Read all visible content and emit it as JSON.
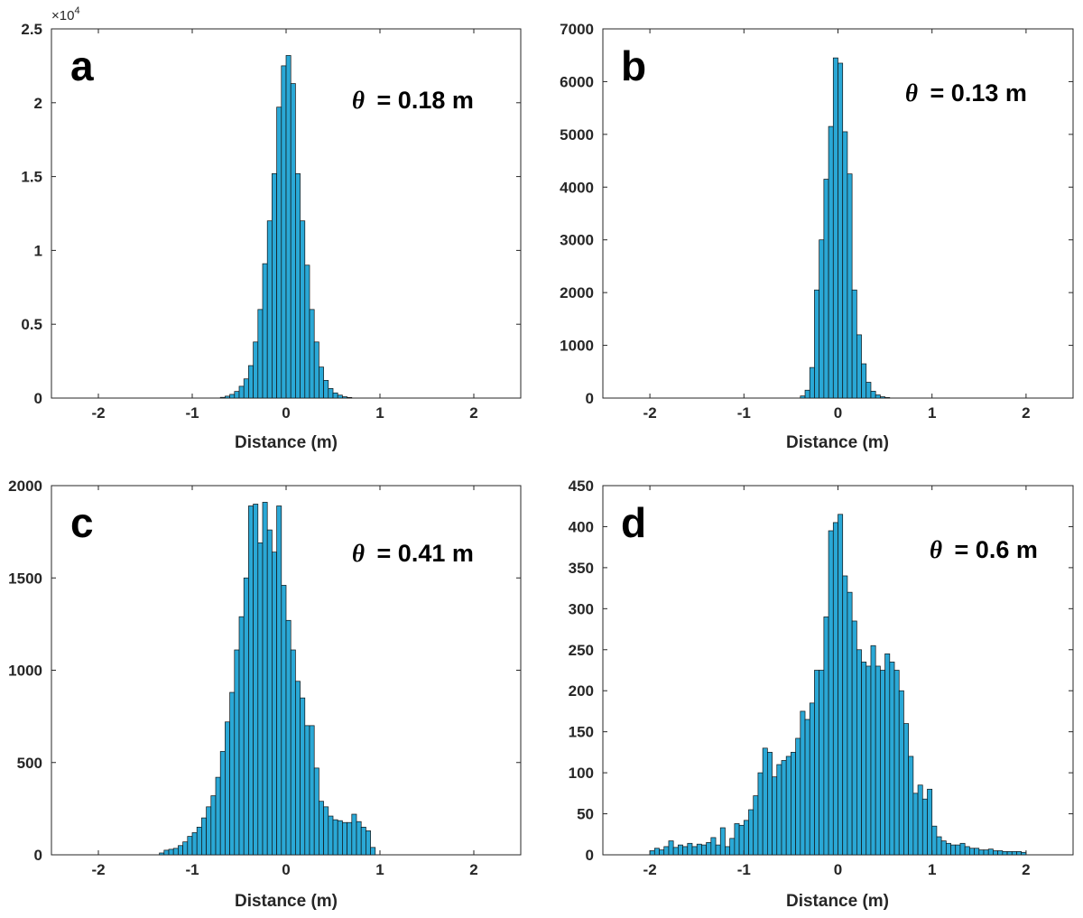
{
  "figure": {
    "bar_color": "#2aa8d6",
    "edge_color": "#111111"
  },
  "chart_data": [
    {
      "type": "bar",
      "panel_label": "a",
      "annotation": {
        "symbol": "θ",
        "text": "= 0.18 m"
      },
      "xlabel": "Distance (m)",
      "ylabel": "",
      "xlim": [
        -2.5,
        2.5
      ],
      "ylim": [
        0,
        25000
      ],
      "xticks": [
        -2,
        -1,
        0,
        1,
        2
      ],
      "xtick_labels": [
        "-2",
        "-1",
        "0",
        "1",
        "2"
      ],
      "yticks": [
        0,
        5000,
        10000,
        15000,
        20000,
        25000
      ],
      "ytick_labels": [
        "0",
        "0.5",
        "1",
        "1.5",
        "2",
        "2.5"
      ],
      "yexponent": {
        "base": "×10",
        "power": "4"
      },
      "bin_width": 0.05,
      "bin_start": -0.7,
      "values": [
        50,
        130,
        250,
        450,
        800,
        1300,
        2200,
        3800,
        6000,
        9100,
        12000,
        15200,
        19700,
        22500,
        23200,
        21300,
        15200,
        12000,
        9000,
        6000,
        3800,
        2100,
        1200,
        650,
        350,
        200,
        90,
        40
      ]
    },
    {
      "type": "bar",
      "panel_label": "b",
      "annotation": {
        "symbol": "θ",
        "text": "= 0.13 m"
      },
      "xlabel": "Distance (m)",
      "ylabel": "",
      "xlim": [
        -2.5,
        2.5
      ],
      "ylim": [
        0,
        7000
      ],
      "xticks": [
        -2,
        -1,
        0,
        1,
        2
      ],
      "xtick_labels": [
        "-2",
        "-1",
        "0",
        "1",
        "2"
      ],
      "yticks": [
        0,
        1000,
        2000,
        3000,
        4000,
        5000,
        6000,
        7000
      ],
      "ytick_labels": [
        "0",
        "1000",
        "2000",
        "3000",
        "4000",
        "5000",
        "6000",
        "7000"
      ],
      "bin_width": 0.05,
      "bin_start": -0.4,
      "values": [
        40,
        150,
        580,
        2050,
        3000,
        4150,
        5150,
        6450,
        6350,
        5050,
        4250,
        2050,
        1200,
        650,
        300,
        130,
        60,
        25,
        10
      ]
    },
    {
      "type": "bar",
      "panel_label": "c",
      "annotation": {
        "symbol": "θ",
        "text": "= 0.41 m"
      },
      "xlabel": "Distance (m)",
      "ylabel": "",
      "xlim": [
        -2.5,
        2.5
      ],
      "ylim": [
        0,
        2000
      ],
      "xticks": [
        -2,
        -1,
        0,
        1,
        2
      ],
      "xtick_labels": [
        "-2",
        "-1",
        "0",
        "1",
        "2"
      ],
      "yticks": [
        0,
        500,
        1000,
        1500,
        2000
      ],
      "ytick_labels": [
        "0",
        "500",
        "1000",
        "1500",
        "2000"
      ],
      "bin_width": 0.05,
      "bin_start": -1.35,
      "values": [
        10,
        25,
        30,
        35,
        50,
        70,
        100,
        120,
        150,
        200,
        260,
        320,
        420,
        560,
        720,
        880,
        1110,
        1290,
        1500,
        1890,
        1900,
        1690,
        1910,
        1760,
        1640,
        1890,
        1460,
        1270,
        1110,
        940,
        850,
        700,
        700,
        470,
        290,
        260,
        210,
        190,
        185,
        175,
        175,
        220,
        180,
        150,
        130,
        40
      ]
    },
    {
      "type": "bar",
      "panel_label": "d",
      "annotation": {
        "symbol": "θ",
        "text": "= 0.6 m"
      },
      "xlabel": "Distance (m)",
      "ylabel": "",
      "xlim": [
        -2.5,
        2.5
      ],
      "ylim": [
        0,
        450
      ],
      "xticks": [
        -2,
        -1,
        0,
        1,
        2
      ],
      "xtick_labels": [
        "-2",
        "-1",
        "0",
        "1",
        "2"
      ],
      "yticks": [
        0,
        50,
        100,
        150,
        200,
        250,
        300,
        350,
        400,
        450
      ],
      "ytick_labels": [
        "0",
        "50",
        "100",
        "150",
        "200",
        "250",
        "300",
        "350",
        "400",
        "450"
      ],
      "bin_width": 0.05,
      "bin_start": -2.0,
      "values": [
        5,
        8,
        6,
        10,
        17,
        9,
        12,
        10,
        14,
        10,
        13,
        12,
        15,
        21,
        12,
        33,
        10,
        20,
        38,
        36,
        42,
        55,
        72,
        100,
        130,
        125,
        95,
        110,
        115,
        120,
        125,
        142,
        175,
        165,
        185,
        225,
        225,
        290,
        395,
        405,
        415,
        340,
        320,
        285,
        250,
        235,
        230,
        255,
        230,
        225,
        245,
        235,
        225,
        200,
        160,
        120,
        75,
        85,
        68,
        80,
        35,
        22,
        17,
        14,
        12,
        12,
        14,
        10,
        8,
        8,
        6,
        6,
        7,
        5,
        5,
        4,
        4,
        4,
        4,
        3
      ]
    }
  ]
}
